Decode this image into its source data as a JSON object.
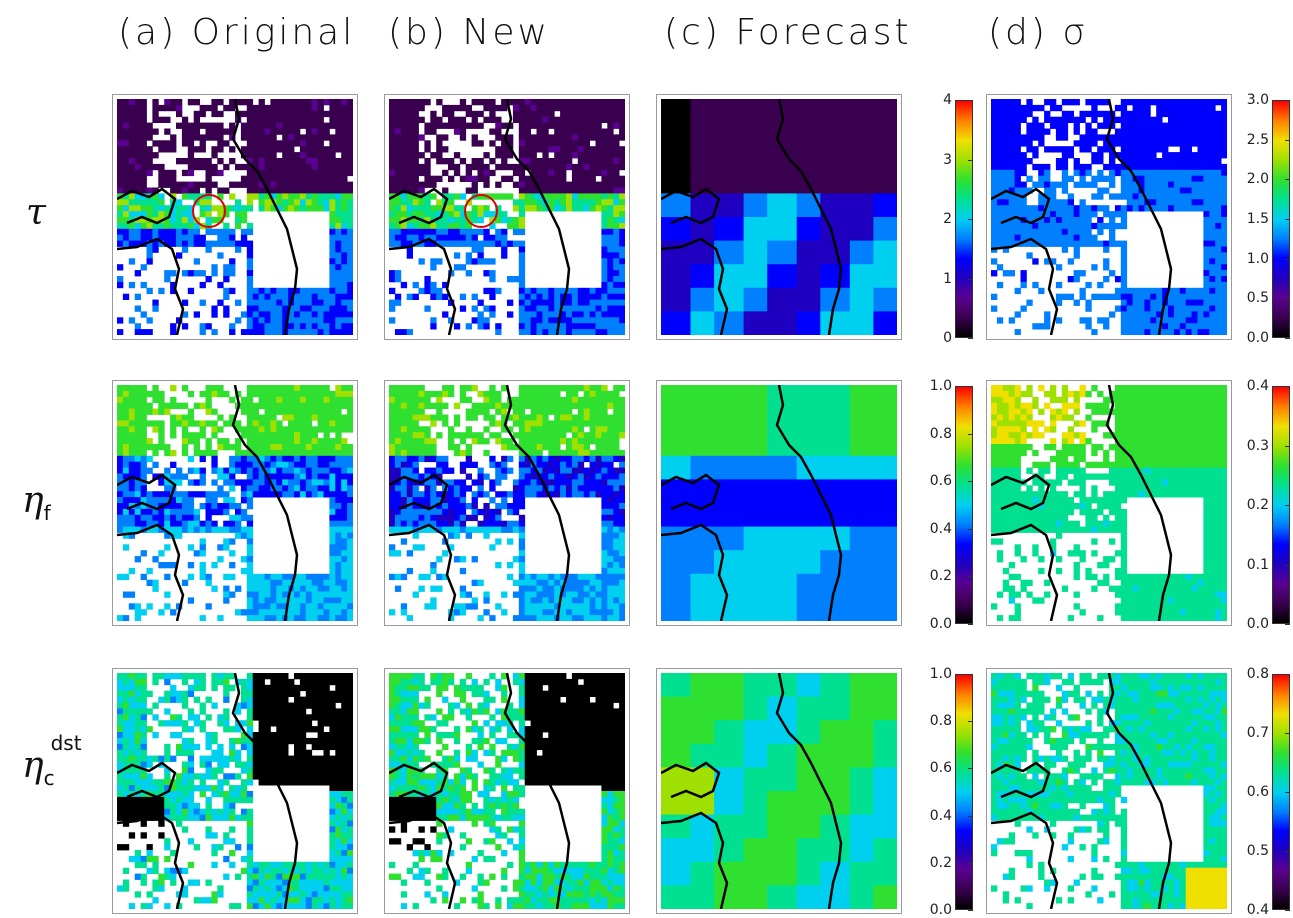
{
  "columns": [
    {
      "label": "(a)  Original"
    },
    {
      "label": "(b)  New"
    },
    {
      "label": "(c)  Forecast"
    },
    {
      "label": "(d)   σ"
    }
  ],
  "rows": [
    {
      "symbol": "τ",
      "sub": "",
      "sup": ""
    },
    {
      "symbol": "η",
      "sub": "f",
      "sup": ""
    },
    {
      "symbol": "η",
      "sub": "c",
      "sup": "dst"
    }
  ],
  "colorbars": {
    "tau_main": [
      "4",
      "3",
      "2",
      "1",
      "0"
    ],
    "tau_sigma": [
      "3.0",
      "2.5",
      "2.0",
      "1.5",
      "1.0",
      "0.5",
      "0.0"
    ],
    "etaf_main": [
      "1.0",
      "0.8",
      "0.6",
      "0.4",
      "0.2",
      "0.0"
    ],
    "etaf_sigma": [
      "0.4",
      "0.3",
      "0.2",
      "0.1",
      "0.0"
    ],
    "etac_main": [
      "1.0",
      "0.8",
      "0.6",
      "0.4",
      "0.2",
      "0.0"
    ],
    "etac_sigma": [
      "0.8",
      "0.7",
      "0.6",
      "0.5",
      "0.4"
    ]
  },
  "colors": {
    "colormap": [
      "#000000",
      "#3a0050",
      "#5a0090",
      "#2000c0",
      "#0000ff",
      "#0080ff",
      "#00d0f0",
      "#00e090",
      "#30e030",
      "#a0e000",
      "#f0e000",
      "#ff8000",
      "#ff0000"
    ],
    "coastline": "#000000",
    "marker_circle": "#e00000"
  }
}
